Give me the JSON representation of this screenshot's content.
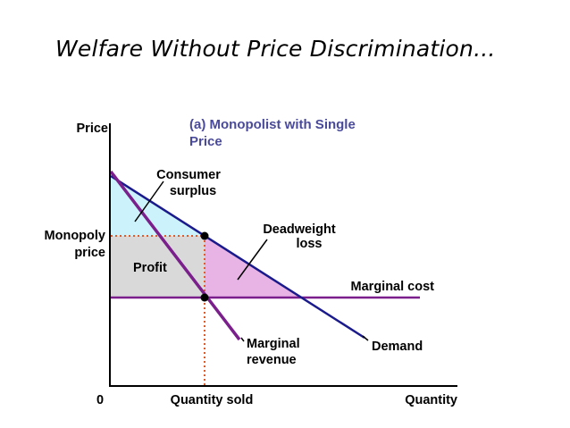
{
  "slide": {
    "title": "Welfare Without Price Discrimination..."
  },
  "diagram": {
    "panel_title_line1": "(a) Monopolist with Single",
    "panel_title_line2": "Price",
    "axes": {
      "y_label": "Price",
      "x_label": "Quantity",
      "origin_label": "0",
      "y_tick_line1": "Monopoly",
      "y_tick_line2": "price",
      "x_tick": "Quantity sold"
    },
    "regions": {
      "consumer_surplus_line1": "Consumer",
      "consumer_surplus_line2": "surplus",
      "profit": "Profit",
      "deadweight_loss_line1": "Deadweight",
      "deadweight_loss_line2": "loss"
    },
    "curves": {
      "marginal_cost": "Marginal cost",
      "marginal_revenue_line1": "Marginal",
      "marginal_revenue_line2": "revenue",
      "demand": "Demand"
    },
    "colors": {
      "consumer_surplus_fill": "#ccf2fb",
      "profit_fill": "#d9d9d9",
      "deadweight_fill": "#e8b4e6",
      "demand_line": "#1a1a8c",
      "marginal_revenue_line": "#7a1f8c",
      "marginal_cost_line": "#7a1f8c",
      "dotted_guides": "#e05a2a",
      "panel_title": "#4a4a9a"
    }
  }
}
